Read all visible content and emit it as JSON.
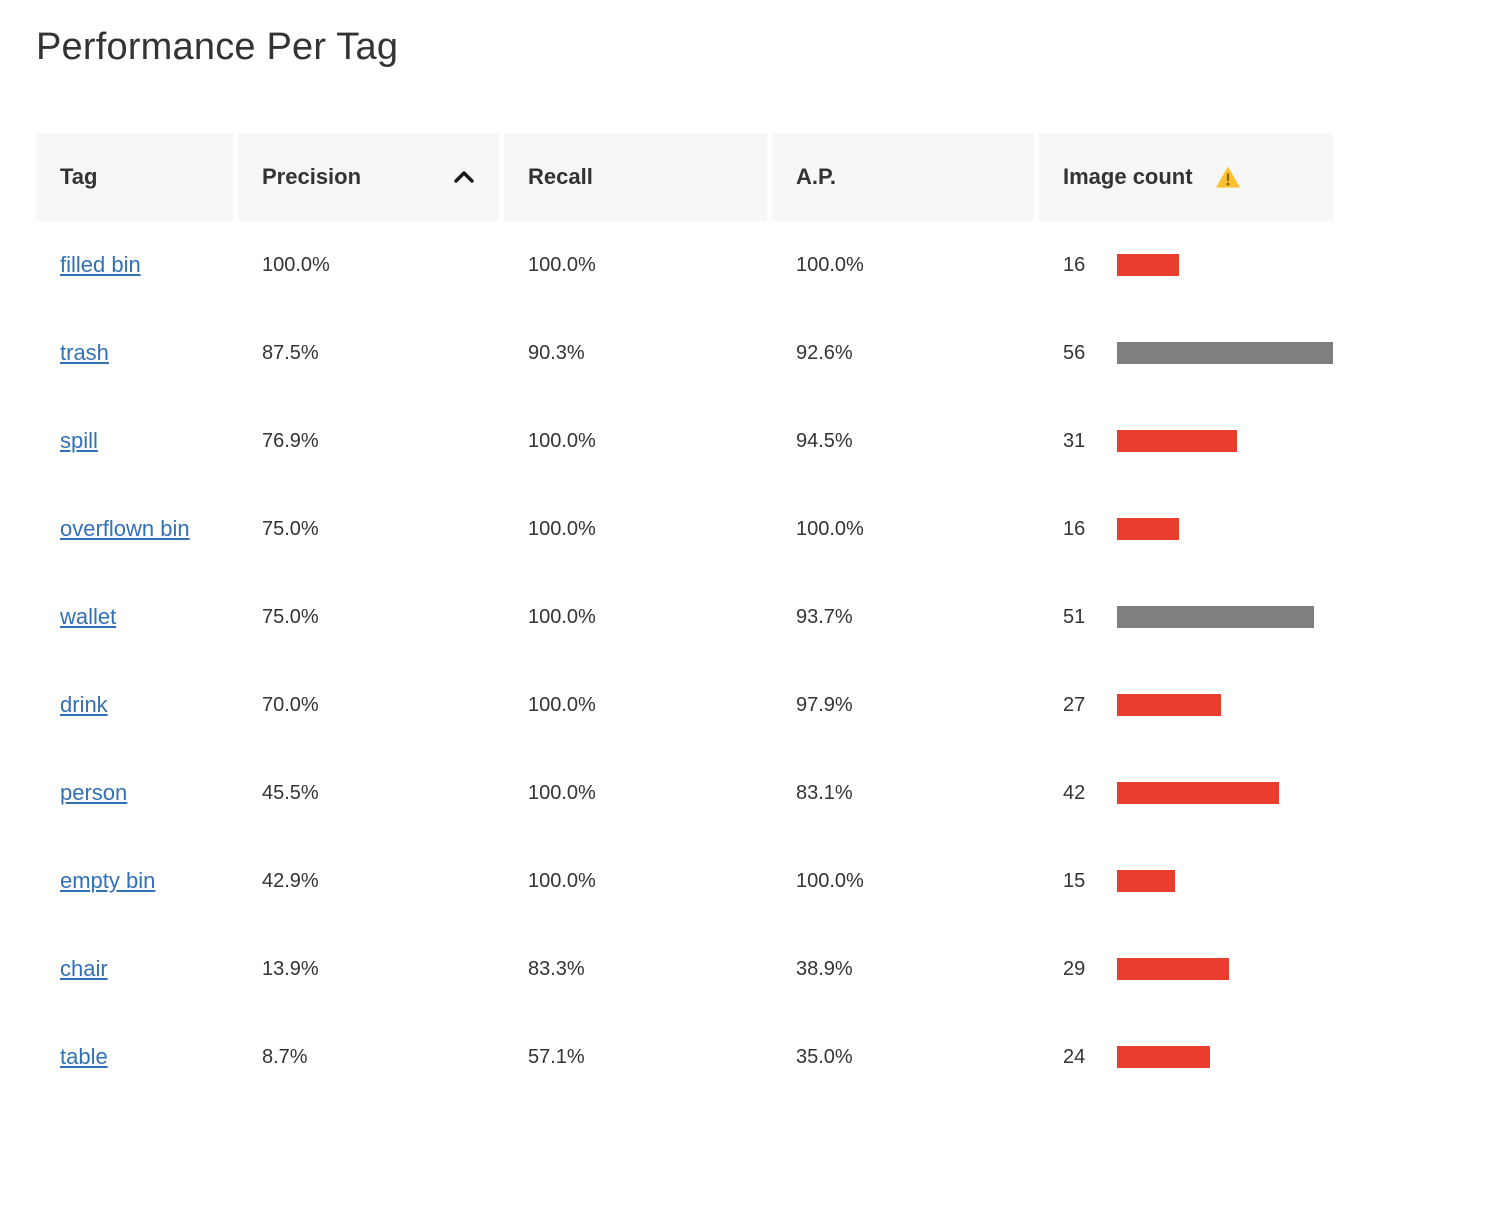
{
  "page": {
    "title": "Performance Per Tag"
  },
  "colors": {
    "link": "#3271b6",
    "bar_red": "#e93d2e",
    "bar_gray": "#7f7f7f",
    "header_bg": "#f7f7f7",
    "warning_yellow": "#fbc02d"
  },
  "table": {
    "columns": [
      {
        "key": "tag",
        "label": "Tag"
      },
      {
        "key": "precision",
        "label": "Precision",
        "sorted": "ascending"
      },
      {
        "key": "recall",
        "label": "Recall"
      },
      {
        "key": "ap",
        "label": "A.P."
      },
      {
        "key": "image_count",
        "label": "Image count",
        "warning": true
      }
    ],
    "bar": {
      "max_count": 56,
      "levels": {
        "red": "#e93d2e",
        "gray": "#7f7f7f"
      }
    },
    "rows": [
      {
        "tag": "filled bin",
        "precision": "100.0%",
        "recall": "100.0%",
        "ap": "100.0%",
        "count": 16,
        "bar_color": "red"
      },
      {
        "tag": "trash",
        "precision": "87.5%",
        "recall": "90.3%",
        "ap": "92.6%",
        "count": 56,
        "bar_color": "gray"
      },
      {
        "tag": "spill",
        "precision": "76.9%",
        "recall": "100.0%",
        "ap": "94.5%",
        "count": 31,
        "bar_color": "red"
      },
      {
        "tag": "overflown bin",
        "precision": "75.0%",
        "recall": "100.0%",
        "ap": "100.0%",
        "count": 16,
        "bar_color": "red"
      },
      {
        "tag": "wallet",
        "precision": "75.0%",
        "recall": "100.0%",
        "ap": "93.7%",
        "count": 51,
        "bar_color": "gray"
      },
      {
        "tag": "drink",
        "precision": "70.0%",
        "recall": "100.0%",
        "ap": "97.9%",
        "count": 27,
        "bar_color": "red"
      },
      {
        "tag": "person",
        "precision": "45.5%",
        "recall": "100.0%",
        "ap": "83.1%",
        "count": 42,
        "bar_color": "red"
      },
      {
        "tag": "empty bin",
        "precision": "42.9%",
        "recall": "100.0%",
        "ap": "100.0%",
        "count": 15,
        "bar_color": "red"
      },
      {
        "tag": "chair",
        "precision": "13.9%",
        "recall": "83.3%",
        "ap": "38.9%",
        "count": 29,
        "bar_color": "red"
      },
      {
        "tag": "table",
        "precision": "8.7%",
        "recall": "57.1%",
        "ap": "35.0%",
        "count": 24,
        "bar_color": "red"
      }
    ]
  }
}
